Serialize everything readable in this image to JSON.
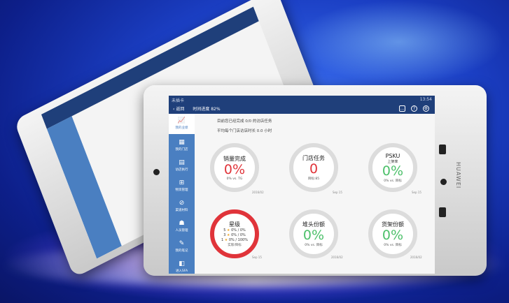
{
  "device": {
    "brand": "HUAWEI"
  },
  "status_bar": {
    "carrier": "未插卡",
    "time": "13:54"
  },
  "nav": {
    "back_label": "返回",
    "progress_label": "时间进度 82%",
    "icons": [
      "message-icon",
      "help-icon",
      "settings-icon"
    ]
  },
  "sidebar": {
    "items": [
      {
        "label": "我的业绩",
        "icon": "chart-icon",
        "active": true
      },
      {
        "label": "我的门店",
        "icon": "store-icon"
      },
      {
        "label": "访店执行",
        "icon": "clipboard-icon"
      },
      {
        "label": "物资管理",
        "icon": "grid-icon"
      },
      {
        "label": "渠道材料",
        "icon": "clip-icon"
      },
      {
        "label": "人员管理",
        "icon": "people-icon"
      },
      {
        "label": "我的笔记",
        "icon": "note-icon"
      },
      {
        "label": "进入SFA",
        "icon": "enter-icon"
      }
    ]
  },
  "summary": {
    "line1": "目前您已经完成 0/0 的访店任务",
    "line2": "平均每个门店访店时长 0.0 小时"
  },
  "cards": [
    {
      "title": "销量完成",
      "value": "0%",
      "foot": "0% vs. TG",
      "date": "2016/02",
      "color": "#e0343a"
    },
    {
      "title": "门店任务",
      "value": "0",
      "foot": "目标:85",
      "date": "Sep 15",
      "color": "#e0343a"
    },
    {
      "title": "PSKU",
      "sub": "上架率",
      "value": "0%",
      "foot": "0% vs. 目标",
      "date": "Sep 15",
      "color": "#4cc06a"
    },
    {
      "title": "星级",
      "stars": [
        {
          "n": "5",
          "v": "0% / 0%"
        },
        {
          "n": "3",
          "v": "0% / 0%"
        },
        {
          "n": "1",
          "v": "0% / 100%"
        }
      ],
      "foot": "实际/目标",
      "date": "Sep 15"
    },
    {
      "title": "堆头份额",
      "value": "0%",
      "foot": "0% vs. 目标",
      "date": "2016/02",
      "color": "#4cc06a"
    },
    {
      "title": "货架份额",
      "value": "0%",
      "foot": "0% vs. 目标",
      "date": "2016/02",
      "color": "#4cc06a"
    }
  ]
}
